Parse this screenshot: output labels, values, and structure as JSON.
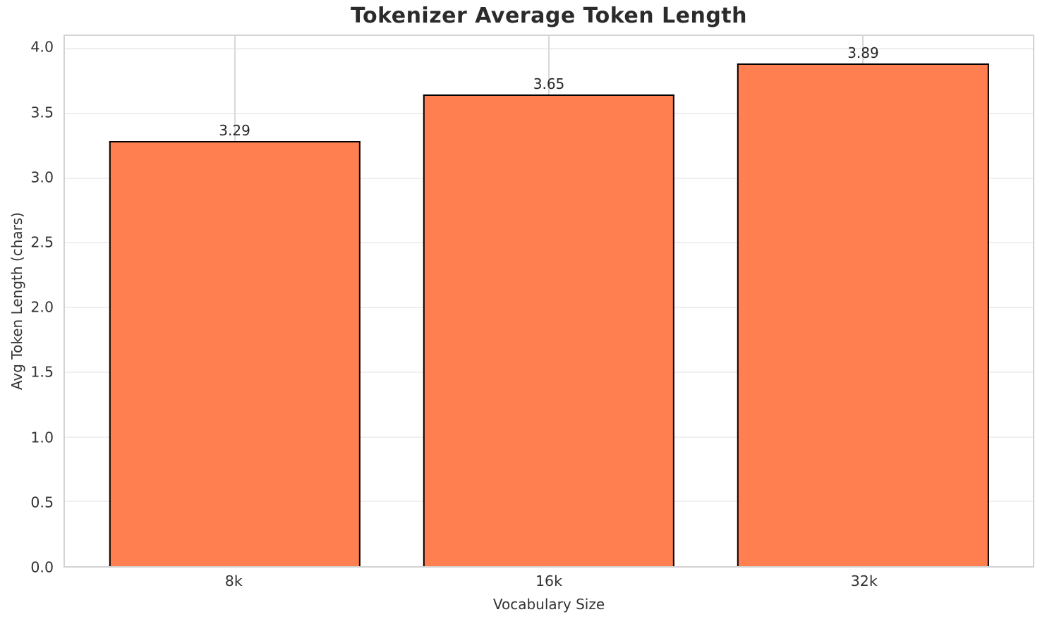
{
  "chart_data": {
    "type": "bar",
    "title": "Tokenizer Average Token Length",
    "xlabel": "Vocabulary Size",
    "ylabel": "Avg Token Length (chars)",
    "categories": [
      "8k",
      "16k",
      "32k"
    ],
    "values": [
      3.29,
      3.65,
      3.89
    ],
    "value_labels": [
      "3.29",
      "3.65",
      "3.89"
    ],
    "ylim": [
      0,
      4.1
    ],
    "xlim": [
      -0.54,
      2.54
    ],
    "bar_width_data": 0.8,
    "yticks": [
      0.0,
      0.5,
      1.0,
      1.5,
      2.0,
      2.5,
      3.0,
      3.5,
      4.0
    ],
    "ytick_labels": [
      "0.0",
      "0.5",
      "1.0",
      "1.5",
      "2.0",
      "2.5",
      "3.0",
      "3.5",
      "4.0"
    ],
    "grid": true,
    "legend": "none",
    "colors": {
      "bar_fill": "#FF7F50",
      "bar_edge": "#000000",
      "hgrid": "#efefef",
      "vgrid": "#d8d8d8",
      "spine": "#d3d3d3",
      "title_text": "#2b2b2b",
      "tick_text": "#333333",
      "value_text": "#262626"
    }
  }
}
